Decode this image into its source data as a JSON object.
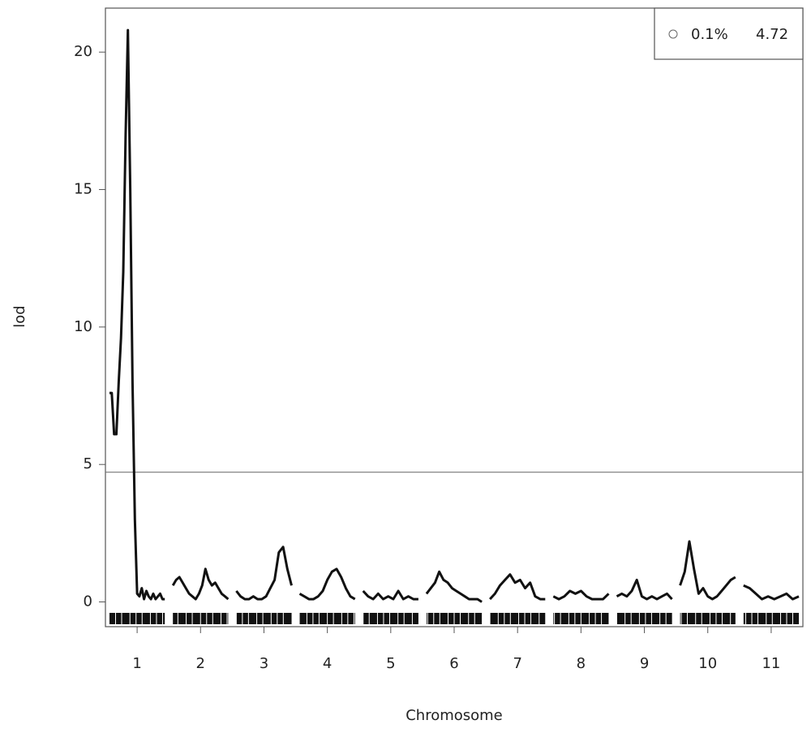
{
  "chart_data": {
    "type": "lod-scan",
    "x_label": "Chromosome",
    "y_label": "lod",
    "ylim": [
      -0.9,
      21.6
    ],
    "yticks": [
      0,
      5,
      10,
      15,
      20
    ],
    "threshold": {
      "name": "0.1%",
      "value": 4.72
    },
    "color": "#111111",
    "chromosomes": [
      {
        "name": "1",
        "lod": [
          7.6,
          7.6,
          6.1,
          6.1,
          8,
          9.6,
          12,
          17,
          20.8,
          15,
          8,
          3,
          0.3,
          0.2,
          0.5,
          0.1,
          0.4,
          0.2,
          0.1,
          0.3,
          0.1,
          0.2,
          0.3,
          0.1,
          0.1
        ]
      },
      {
        "name": "2",
        "lod": [
          0.6,
          0.8,
          0.9,
          0.7,
          0.5,
          0.3,
          0.2,
          0.1,
          0.3,
          0.6,
          1.2,
          0.8,
          0.6,
          0.7,
          0.5,
          0.3,
          0.2,
          0.1
        ]
      },
      {
        "name": "3",
        "lod": [
          0.4,
          0.2,
          0.1,
          0.1,
          0.2,
          0.1,
          0.1,
          0.2,
          0.5,
          0.8,
          1.8,
          2,
          1.2,
          0.6
        ]
      },
      {
        "name": "4",
        "lod": [
          0.3,
          0.2,
          0.1,
          0.1,
          0.2,
          0.4,
          0.8,
          1.1,
          1.2,
          0.9,
          0.5,
          0.2,
          0.1
        ]
      },
      {
        "name": "5",
        "lod": [
          0.4,
          0.2,
          0.1,
          0.3,
          0.1,
          0.2,
          0.1,
          0.4,
          0.1,
          0.2,
          0.1,
          0.1
        ]
      },
      {
        "name": "6",
        "lod": [
          0.3,
          0.5,
          0.7,
          1.1,
          0.8,
          0.7,
          0.5,
          0.4,
          0.3,
          0.2,
          0.1,
          0.1,
          0.1,
          0
        ]
      },
      {
        "name": "7",
        "lod": [
          0.1,
          0.3,
          0.6,
          0.8,
          1.0,
          0.7,
          0.8,
          0.5,
          0.7,
          0.2,
          0.1,
          0.1
        ]
      },
      {
        "name": "8",
        "lod": [
          0.2,
          0.1,
          0.2,
          0.4,
          0.3,
          0.4,
          0.2,
          0.1,
          0.1,
          0.1,
          0.3
        ]
      },
      {
        "name": "9",
        "lod": [
          0.2,
          0.3,
          0.2,
          0.4,
          0.8,
          0.2,
          0.1,
          0.2,
          0.1,
          0.2,
          0.3,
          0.1
        ]
      },
      {
        "name": "10",
        "lod": [
          0.6,
          1.1,
          2.2,
          1.2,
          0.3,
          0.5,
          0.2,
          0.1,
          0.2,
          0.4,
          0.6,
          0.8,
          0.9
        ]
      },
      {
        "name": "11",
        "lod": [
          0.6,
          0.5,
          0.3,
          0.1,
          0.2,
          0.1,
          0.2,
          0.3,
          0.1,
          0.2
        ]
      }
    ]
  }
}
